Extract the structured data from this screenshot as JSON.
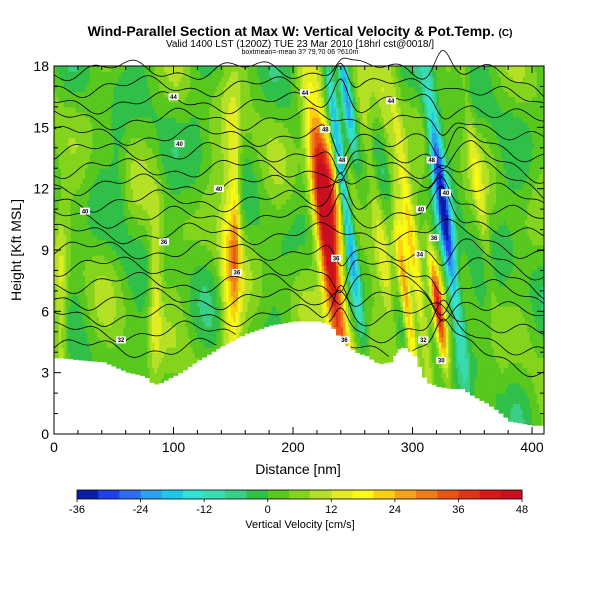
{
  "chart_data": {
    "type": "heatmap",
    "title": "Wind-Parallel Section at Max W: Vertical Velocity & Pot.Temp.",
    "title_suffix": "(C)",
    "subtitle": "Valid 1400 LST (1200Z) TUE 23 Mar 2010 [18hrl cst@0018/]",
    "subtitle2": "boxtmean=-mean 3? 79,?0 06 ?610m",
    "xlabel": "Distance [nm]",
    "ylabel": "Height [Kft MSL]",
    "xlim": [
      0,
      410
    ],
    "ylim": [
      0,
      18
    ],
    "xticks": [
      "0",
      "100",
      "200",
      "300",
      "400"
    ],
    "yticks": [
      "0",
      "3",
      "6",
      "9",
      "12",
      "15",
      "18"
    ],
    "colorbar": {
      "label": "Vertical Velocity [cm/s]",
      "ticks": [
        "-36",
        "-24",
        "-12",
        "0",
        "12",
        "24",
        "36",
        "48"
      ],
      "min": -36,
      "max": 48,
      "step": 4,
      "colors": [
        "#0a1ea8",
        "#1e40e8",
        "#2e6cf0",
        "#2fa0ec",
        "#20c8e8",
        "#30e4d4",
        "#38dcb0",
        "#3acf86",
        "#30c04a",
        "#58c81e",
        "#84d41e",
        "#b4e026",
        "#e2ec22",
        "#fafa10",
        "#f8d210",
        "#f4a418",
        "#ee7c1a",
        "#e85416",
        "#e0341a",
        "#d81818",
        "#c81020"
      ]
    },
    "terrain_x": [
      0,
      5,
      20,
      40,
      60,
      75,
      80,
      85,
      95,
      105,
      120,
      140,
      160,
      180,
      200,
      220,
      230,
      240,
      250,
      260,
      270,
      280,
      290,
      300,
      310,
      320,
      330,
      340,
      350,
      360,
      370,
      380,
      390,
      400,
      410
    ],
    "terrain_kft": [
      3.7,
      3.7,
      3.6,
      3.5,
      3.0,
      2.8,
      2.5,
      2.4,
      2.7,
      3.0,
      3.6,
      4.3,
      4.9,
      5.3,
      5.5,
      5.5,
      5.3,
      4.5,
      4.0,
      3.8,
      3.4,
      3.5,
      4.3,
      3.8,
      2.5,
      2.3,
      2.2,
      2.2,
      1.8,
      1.5,
      1.1,
      0.6,
      0.5,
      0.4,
      0.4
    ],
    "theta_contour_labels": [
      {
        "text": "44",
        "x": 100,
        "y": 16.5
      },
      {
        "text": "44",
        "x": 210,
        "y": 16.7
      },
      {
        "text": "44",
        "x": 282,
        "y": 16.3
      },
      {
        "text": "40",
        "x": 105,
        "y": 14.2
      },
      {
        "text": "40",
        "x": 138,
        "y": 12.0
      },
      {
        "text": "40",
        "x": 26,
        "y": 10.9
      },
      {
        "text": "36",
        "x": 92,
        "y": 9.4
      },
      {
        "text": "36",
        "x": 153,
        "y": 7.9
      },
      {
        "text": "32",
        "x": 56,
        "y": 4.6
      },
      {
        "text": "48",
        "x": 227,
        "y": 14.9
      },
      {
        "text": "48",
        "x": 241,
        "y": 13.4
      },
      {
        "text": "36",
        "x": 236,
        "y": 8.6
      },
      {
        "text": "36",
        "x": 243,
        "y": 4.6
      },
      {
        "text": "48",
        "x": 316,
        "y": 13.4
      },
      {
        "text": "40",
        "x": 307,
        "y": 11.0
      },
      {
        "text": "40",
        "x": 328,
        "y": 11.8
      },
      {
        "text": "36",
        "x": 318,
        "y": 9.6
      },
      {
        "text": "34",
        "x": 306,
        "y": 8.8
      },
      {
        "text": "32",
        "x": 309,
        "y": 4.6
      },
      {
        "text": "30",
        "x": 324,
        "y": 3.6
      }
    ],
    "w_features": [
      {
        "x": 231,
        "y": 8.5,
        "sx": 6,
        "sy": 4.5,
        "w": 46
      },
      {
        "x": 227,
        "y": 13.0,
        "sx": 7,
        "sy": 2.5,
        "w": 24
      },
      {
        "x": 242,
        "y": 12.0,
        "sx": 3,
        "sy": 4.5,
        "w": -30
      },
      {
        "x": 245,
        "y": 16.5,
        "sx": 3,
        "sy": 2.0,
        "w": -24
      },
      {
        "x": 330,
        "y": 9.0,
        "sx": 4,
        "sy": 4.0,
        "w": -28
      },
      {
        "x": 320,
        "y": 14.0,
        "sx": 4,
        "sy": 3.0,
        "w": -16
      },
      {
        "x": 300,
        "y": 9.0,
        "sx": 3.5,
        "sy": 5.0,
        "w": 18
      },
      {
        "x": 322,
        "y": 6.0,
        "sx": 3,
        "sy": 2.0,
        "w": 34
      },
      {
        "x": 296,
        "y": 6.0,
        "sx": 3,
        "sy": 2.5,
        "w": 26
      },
      {
        "x": 148,
        "y": 9.0,
        "sx": 6,
        "sy": 5.0,
        "w": 18
      },
      {
        "x": 152,
        "y": 10.0,
        "sx": 2.5,
        "sy": 3.0,
        "w": 12
      },
      {
        "x": 85,
        "y": 7.0,
        "sx": 4,
        "sy": 3.0,
        "w": 12
      },
      {
        "x": 6,
        "y": 6.0,
        "sx": 4,
        "sy": 3.0,
        "w": 12
      },
      {
        "x": 270,
        "y": 11.0,
        "sx": 4,
        "sy": 5.0,
        "w": 10
      },
      {
        "x": 285,
        "y": 12.0,
        "sx": 3,
        "sy": 4.0,
        "w": 8
      },
      {
        "x": 355,
        "y": 12.0,
        "sx": 3,
        "sy": 5.0,
        "w": 8
      },
      {
        "x": 55,
        "y": 13.0,
        "sx": 5,
        "sy": 3.0,
        "w": -4
      },
      {
        "x": 120,
        "y": 14.0,
        "sx": 6,
        "sy": 3.0,
        "w": -4
      },
      {
        "x": 380,
        "y": 8.0,
        "sx": 8,
        "sy": 4.0,
        "w": -3
      }
    ]
  }
}
